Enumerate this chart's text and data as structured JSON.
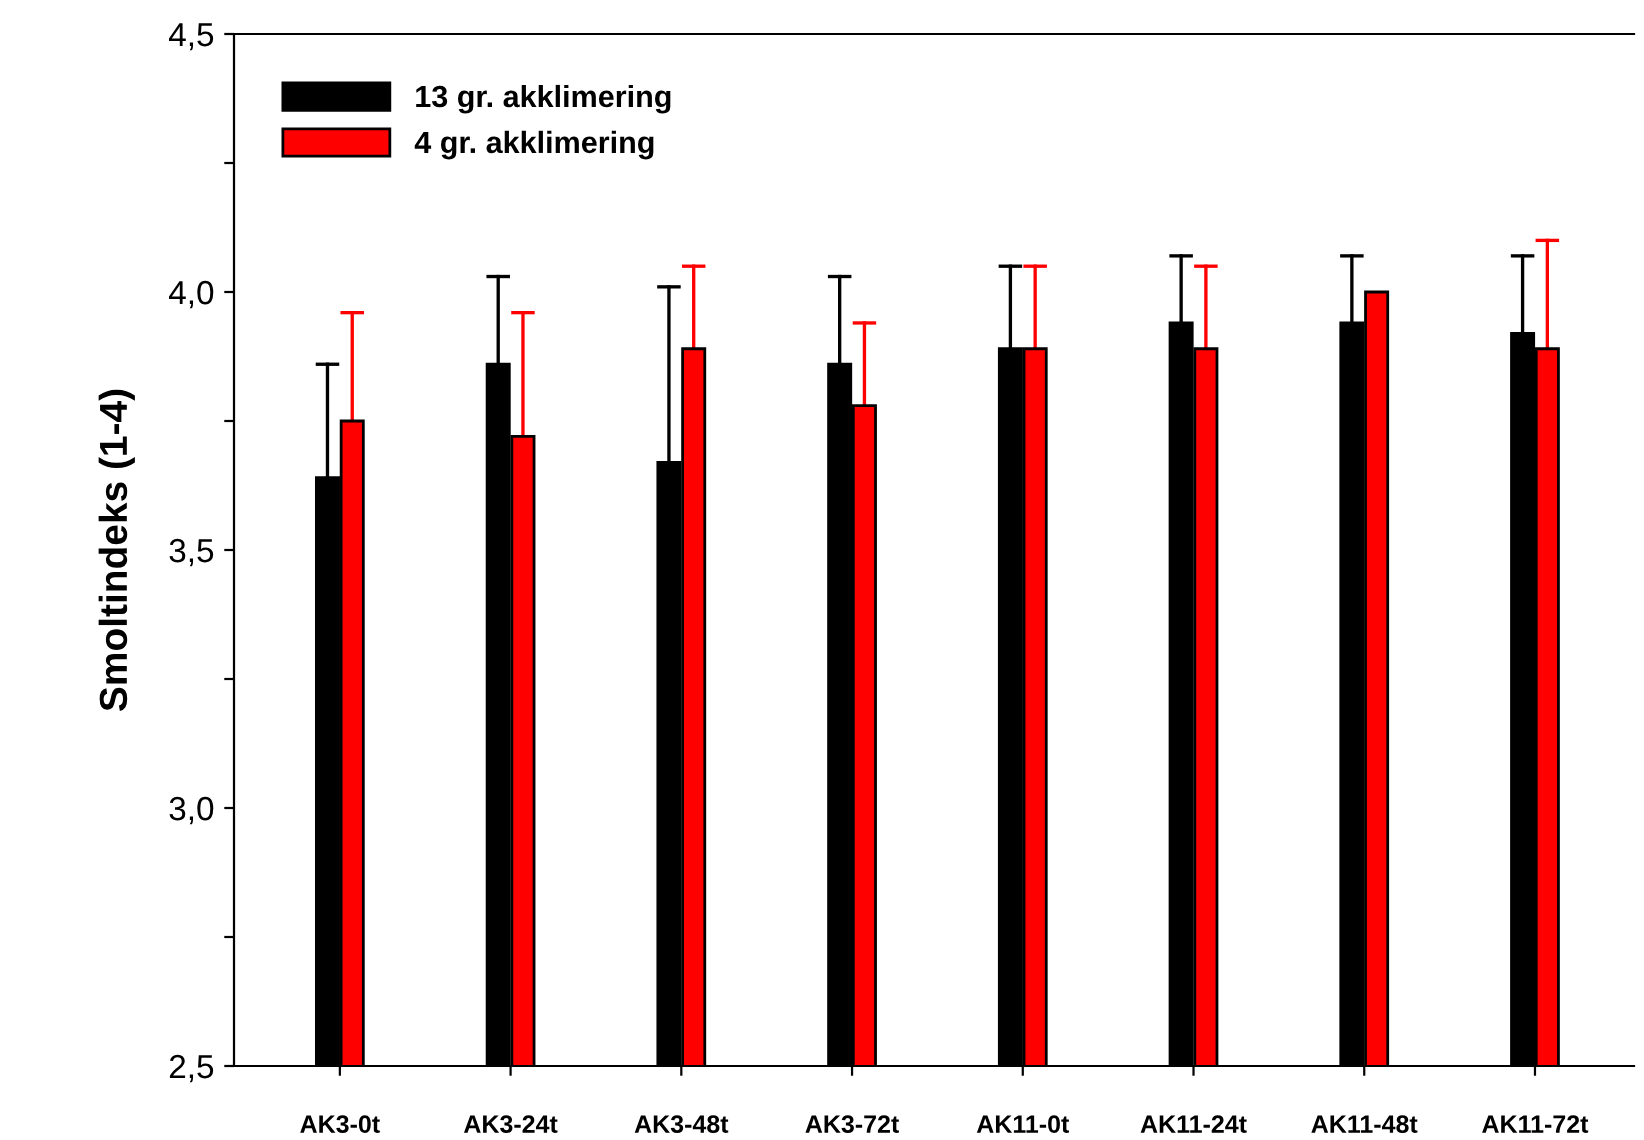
{
  "chart_data": {
    "type": "bar",
    "ylabel": "Smoltindeks (1-4)",
    "categories": [
      "AK3-0t",
      "AK3-24t",
      "AK3-48t",
      "AK3-72t",
      "AK11-0t",
      "AK11-24t",
      "AK11-48t",
      "AK11-72t"
    ],
    "series": [
      {
        "name": "13 gr. akklimering",
        "color": "#000000",
        "values": [
          3.64,
          3.86,
          3.67,
          3.86,
          3.89,
          3.94,
          3.94,
          3.92
        ],
        "errors": [
          [
            3.64,
            3.86
          ],
          [
            3.86,
            4.03
          ],
          [
            3.67,
            4.01
          ],
          [
            3.86,
            4.03
          ],
          [
            3.89,
            4.05
          ],
          [
            3.94,
            4.07
          ],
          [
            3.94,
            4.07
          ],
          [
            3.92,
            4.07
          ]
        ]
      },
      {
        "name": "4 gr. akklimering",
        "color": "#ff0000",
        "values": [
          3.75,
          3.72,
          3.89,
          3.78,
          3.89,
          3.89,
          4.0,
          3.89
        ],
        "errors": [
          [
            3.75,
            3.96
          ],
          [
            3.72,
            3.96
          ],
          [
            3.89,
            4.05
          ],
          [
            3.78,
            3.94
          ],
          [
            3.89,
            4.05
          ],
          [
            3.89,
            4.05
          ],
          null,
          [
            3.89,
            4.1
          ]
        ]
      }
    ],
    "ylim": [
      2.5,
      4.5
    ],
    "yticks": [
      {
        "value": 2.5,
        "label": "2,5"
      },
      {
        "value": 2.75,
        "label": null
      },
      {
        "value": 3.0,
        "label": "3,0"
      },
      {
        "value": 3.25,
        "label": null
      },
      {
        "value": 3.5,
        "label": "3,5"
      },
      {
        "value": 3.75,
        "label": null
      },
      {
        "value": 4.0,
        "label": "4,0"
      },
      {
        "value": 4.25,
        "label": null
      },
      {
        "value": 4.5,
        "label": "4,5"
      }
    ],
    "legend": "top left",
    "grid": false
  }
}
